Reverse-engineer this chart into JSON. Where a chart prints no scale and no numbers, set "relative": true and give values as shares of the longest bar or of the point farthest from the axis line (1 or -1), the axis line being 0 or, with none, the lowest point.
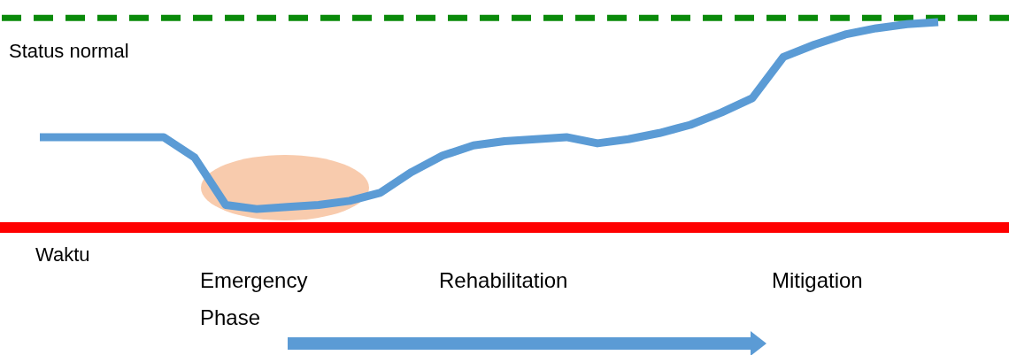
{
  "chart_data": {
    "type": "line",
    "relative": true,
    "xlabel": "Waktu",
    "categories": [
      null,
      null,
      null,
      null,
      null,
      null,
      null,
      null,
      null,
      null,
      null,
      null,
      null,
      null,
      null,
      null,
      null,
      null,
      null,
      null,
      null,
      null,
      null,
      null,
      null,
      null,
      null,
      null,
      null,
      null
    ],
    "series": [
      {
        "color": "#5b9bd5",
        "values": [
          0.44,
          0.44,
          0.44,
          0.44,
          0.44,
          0.34,
          0.11,
          0.09,
          0.1,
          0.11,
          0.13,
          0.17,
          0.27,
          0.35,
          0.4,
          0.42,
          0.43,
          0.44,
          0.41,
          0.43,
          0.46,
          0.5,
          0.56,
          0.63,
          0.83,
          0.89,
          0.94,
          0.97,
          0.99,
          1.0
        ]
      }
    ],
    "ref_lines": [
      {
        "axis": "y",
        "value": 1.02,
        "label": "Status normal",
        "color": "#0a8a0a",
        "line_style": "dashed"
      }
    ],
    "annotations": [
      "Emergency Phase",
      "Rehabilitation",
      "Mitigation"
    ],
    "marker": "none",
    "line_style": "solid"
  }
}
